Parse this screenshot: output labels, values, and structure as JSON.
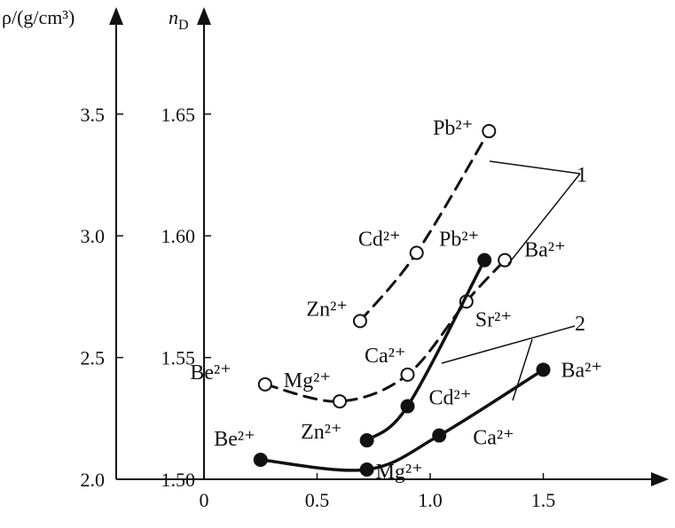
{
  "chart_data": {
    "type": "line",
    "xlabel": "",
    "x_ticks": [
      0,
      0.5,
      1.0,
      1.5
    ],
    "x_tick_labels": [
      "0",
      "0.5",
      "1.0",
      "1.5"
    ],
    "xlim": [
      -0.3,
      2.0
    ],
    "y_axes": [
      {
        "key": "rho",
        "title": "ρ/(g/cm³)",
        "tick_labels": [
          "2.0",
          "2.5",
          "3.0",
          "3.5"
        ]
      },
      {
        "key": "nD",
        "title": "nD",
        "ticks": [
          1.5,
          1.55,
          1.6,
          1.65
        ],
        "tick_labels": [
          "1.50",
          "1.55",
          "1.60",
          "1.65"
        ],
        "ylim": [
          1.495,
          1.7
        ]
      }
    ],
    "series": [
      {
        "id": "density",
        "group": "1",
        "style": "dashed",
        "marker": "open-circle",
        "branches": [
          {
            "points": [
              {
                "x": 0.27,
                "y": 1.539,
                "ion": "Be²⁺"
              },
              {
                "x": 0.6,
                "y": 1.532,
                "ion": "Mg²⁺"
              },
              {
                "x": 0.9,
                "y": 1.543,
                "ion": "Ca²⁺"
              },
              {
                "x": 1.16,
                "y": 1.573,
                "ion": "Sr²⁺"
              },
              {
                "x": 1.33,
                "y": 1.59,
                "ion": "Ba²⁺"
              }
            ]
          },
          {
            "points": [
              {
                "x": 0.69,
                "y": 1.565,
                "ion": "Zn²⁺"
              },
              {
                "x": 0.94,
                "y": 1.593,
                "ion": "Cd²⁺"
              },
              {
                "x": 1.26,
                "y": 1.643,
                "ion": "Pb²⁺"
              }
            ]
          }
        ]
      },
      {
        "id": "refractive_index",
        "group": "2",
        "style": "solid",
        "marker": "filled-circle",
        "branches": [
          {
            "points": [
              {
                "x": 0.25,
                "y": 1.508,
                "ion": "Be²⁺"
              },
              {
                "x": 0.72,
                "y": 1.504,
                "ion": "Mg²⁺"
              },
              {
                "x": 1.04,
                "y": 1.518,
                "ion": "Ca²⁺"
              },
              {
                "x": 1.5,
                "y": 1.545,
                "ion": "Ba²⁺"
              }
            ]
          },
          {
            "points": [
              {
                "x": 0.72,
                "y": 1.516,
                "ion": "Zn²⁺"
              },
              {
                "x": 0.9,
                "y": 1.53,
                "ion": "Cd²⁺"
              },
              {
                "x": 1.24,
                "y": 1.59,
                "ion": "Pb²⁺"
              }
            ]
          }
        ]
      }
    ],
    "annotations": [
      "1",
      "2"
    ]
  }
}
